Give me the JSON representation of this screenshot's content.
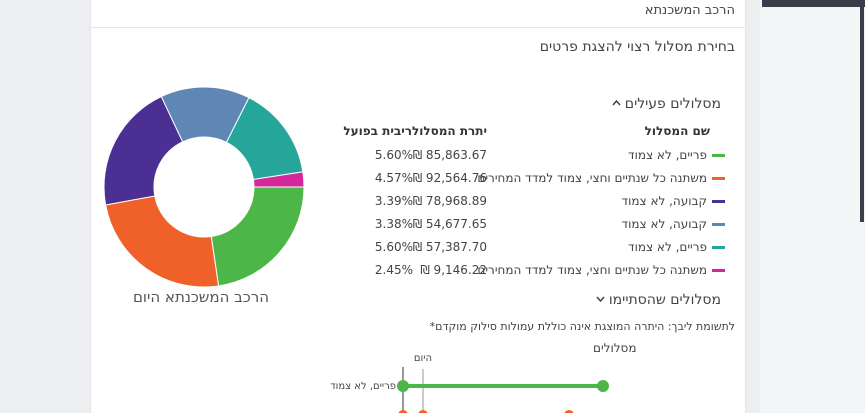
{
  "card": {
    "title": "הרכב המשכנתא",
    "subtitle": "בחירת מסלול רצוי להצגת פרטים"
  },
  "active_section": {
    "label": "מסלולים פעילים",
    "chevron": "chevron-up-icon"
  },
  "table": {
    "headers": {
      "name": "שם המסלול",
      "balance": "יתרת המסלול",
      "rate": "ריבית בפועל"
    },
    "rows": [
      {
        "name": "פריים, לא צמוד",
        "balance": "₪ 85,863.67",
        "rate": "5.60%",
        "color": "#4cb748"
      },
      {
        "name": "משתנה כל שנתיים וחצי, צמוד למדד המחירים",
        "balance": "₪ 92,564.76",
        "rate": "4.57%",
        "color": "#f06129"
      },
      {
        "name": "קבועה, לא צמוד",
        "balance": "₪ 78,968.89",
        "rate": "3.39%",
        "color": "#4b2f93"
      },
      {
        "name": "קבועה, לא צמוד",
        "balance": "₪ 54,677.65",
        "rate": "3.38%",
        "color": "#5f86b5"
      },
      {
        "name": "פריים, לא צמוד",
        "balance": "₪ 57,387.70",
        "rate": "5.60%",
        "color": "#26a69a"
      },
      {
        "name": "משתנה כל שנתיים וחצי, צמוד למדד המחירים",
        "balance": "₪ 9,146.22",
        "rate": "2.45%",
        "color": "#d3279b"
      }
    ]
  },
  "donut": {
    "label": "הרכב המשכנתא היום",
    "values": [
      85863.67,
      92564.76,
      78968.89,
      54677.65,
      57387.7,
      9146.22
    ],
    "colors": [
      "#4cb748",
      "#f06129",
      "#4b2f93",
      "#5f86b5",
      "#26a69a",
      "#d3279b"
    ]
  },
  "ended_section": {
    "label": "מסלולים שהסתיימו",
    "chevron": "chevron-down-icon"
  },
  "footnote": "*לתשומת ליבך: היתרה המוצגת אינה כוללת עמולות סילוק מוקדם",
  "timeline": {
    "title": "מסלולים",
    "today_label": "היום",
    "first_track": "פריים, לא צמוד",
    "track_color": "#4cb748",
    "second_track_color": "#f06129"
  }
}
